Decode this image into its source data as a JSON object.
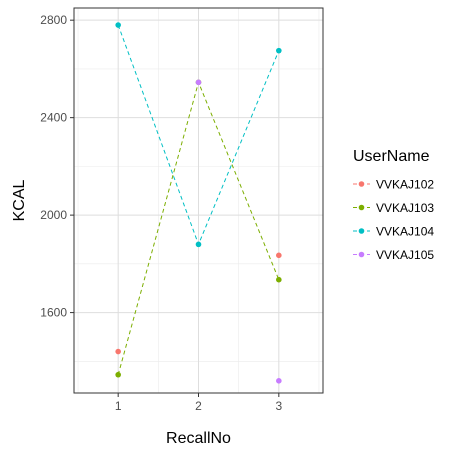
{
  "chart_data": {
    "type": "line",
    "title": "",
    "xlabel": "RecallNo",
    "ylabel": "KCAL",
    "x_ticks": [
      1,
      2,
      3
    ],
    "y_ticks": [
      1600,
      2000,
      2400,
      2800
    ],
    "xlim": [
      0.45,
      3.55
    ],
    "ylim": [
      1270,
      2850
    ],
    "grid": true,
    "legend": {
      "title": "UserName",
      "position": "right"
    },
    "series": [
      {
        "name": "VVKAJ102",
        "color": "#F8766D",
        "x": [
          1,
          3
        ],
        "y": [
          1440,
          1835
        ],
        "line": false
      },
      {
        "name": "VVKAJ103",
        "color": "#7CAE00",
        "x": [
          1,
          2,
          3
        ],
        "y": [
          1345,
          2545,
          1735
        ],
        "line": true
      },
      {
        "name": "VVKAJ104",
        "color": "#00BFC4",
        "x": [
          1,
          2,
          3
        ],
        "y": [
          2780,
          1880,
          2675
        ],
        "line": true
      },
      {
        "name": "VVKAJ105",
        "color": "#C77CFF",
        "x": [
          2,
          3
        ],
        "y": [
          2545,
          1320
        ],
        "line": false
      }
    ]
  }
}
